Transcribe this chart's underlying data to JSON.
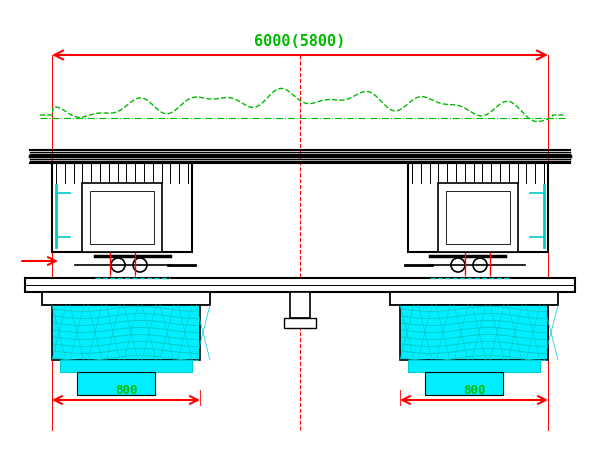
{
  "bg_color": "#ffffff",
  "red": "#ff0000",
  "green": "#00bb00",
  "cyan": "#00cccc",
  "lcyan": "#00eeff",
  "black": "#000000",
  "title_text": "6000(5800)",
  "title_fontsize": 11,
  "label_800_fontsize": 9
}
